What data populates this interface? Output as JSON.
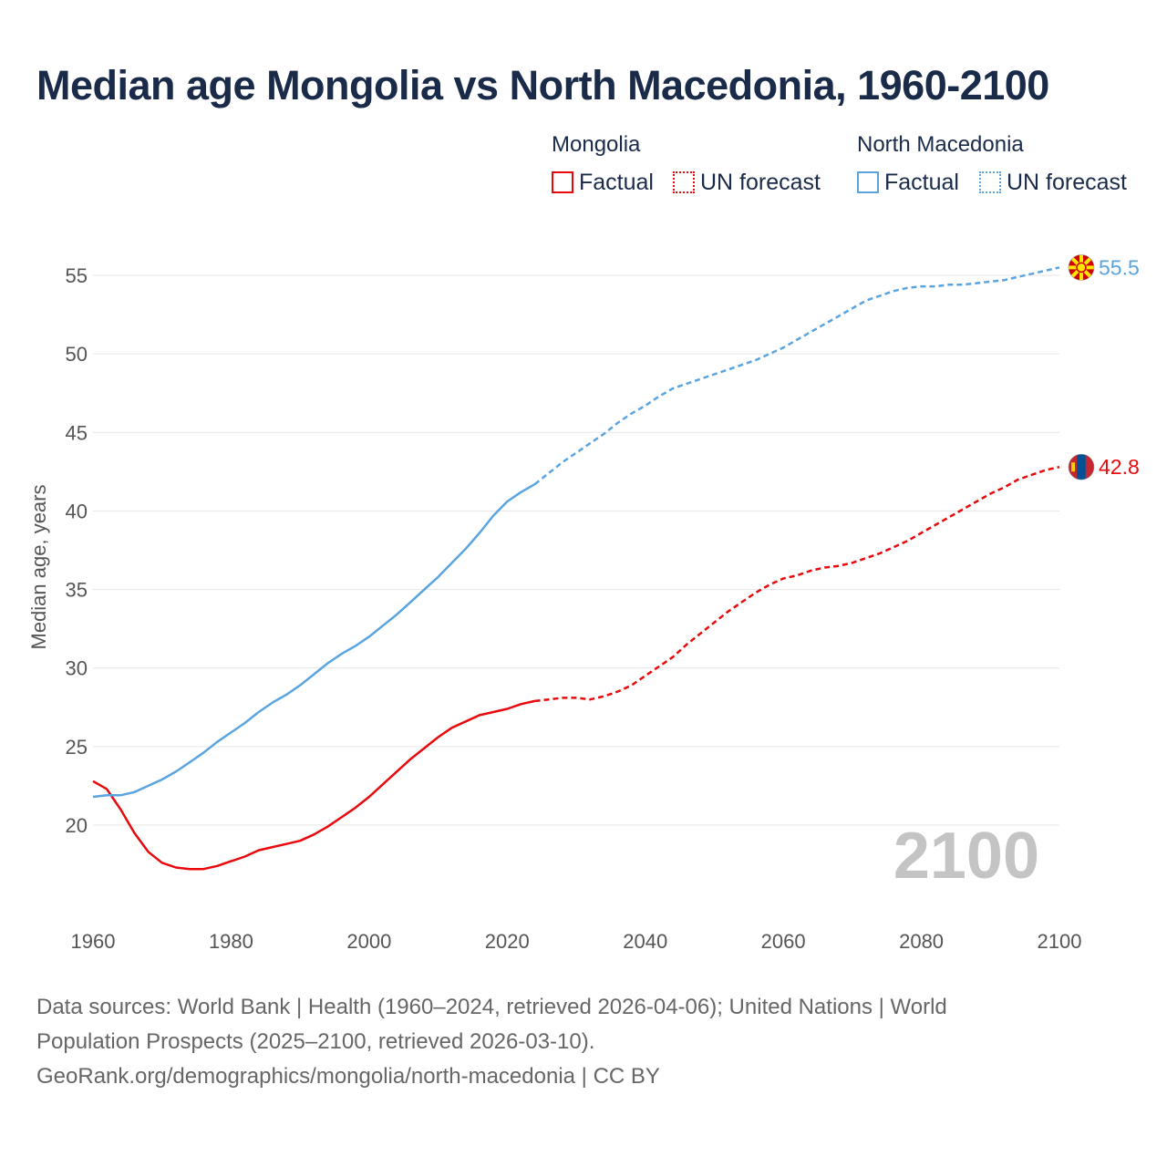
{
  "title": "Median age Mongolia vs North Macedonia, 1960-2100",
  "legend": {
    "groups": [
      {
        "name": "Mongolia",
        "factual_label": "Factual",
        "forecast_label": "UN forecast",
        "color": "#e8090d"
      },
      {
        "name": "North Macedonia",
        "factual_label": "Factual",
        "forecast_label": "UN forecast",
        "color": "#5aa4e0"
      }
    ]
  },
  "year_watermark": "2100",
  "footer": {
    "line1": "Data sources: World Bank | Health (1960–2024, retrieved 2026-04-06); United Nations | World",
    "line2": "Population Prospects (2025–2100, retrieved 2026-03-10).",
    "line3": "GeoRank.org/demographics/mongolia/north-macedonia | CC BY"
  },
  "chart_data": {
    "type": "line",
    "ylabel": "Median age, years",
    "xlabel": "",
    "xlim": [
      1960,
      2100
    ],
    "ylim": [
      16,
      58
    ],
    "x_ticks": [
      1960,
      1980,
      2000,
      2020,
      2040,
      2060,
      2080,
      2100
    ],
    "y_ticks": [
      20,
      25,
      30,
      35,
      40,
      45,
      50,
      55
    ],
    "factual_end_year": 2024,
    "series": [
      {
        "name": "Mongolia",
        "color": "#e8090d",
        "end_label": "42.8",
        "flag_icon": "mongolia-flag-icon",
        "points": [
          [
            1960,
            22.8
          ],
          [
            1962,
            22.3
          ],
          [
            1964,
            21.0
          ],
          [
            1966,
            19.5
          ],
          [
            1968,
            18.3
          ],
          [
            1970,
            17.6
          ],
          [
            1972,
            17.3
          ],
          [
            1974,
            17.2
          ],
          [
            1976,
            17.2
          ],
          [
            1978,
            17.4
          ],
          [
            1980,
            17.7
          ],
          [
            1982,
            18.0
          ],
          [
            1984,
            18.4
          ],
          [
            1986,
            18.6
          ],
          [
            1988,
            18.8
          ],
          [
            1990,
            19.0
          ],
          [
            1992,
            19.4
          ],
          [
            1994,
            19.9
          ],
          [
            1996,
            20.5
          ],
          [
            1998,
            21.1
          ],
          [
            2000,
            21.8
          ],
          [
            2002,
            22.6
          ],
          [
            2004,
            23.4
          ],
          [
            2006,
            24.2
          ],
          [
            2008,
            24.9
          ],
          [
            2010,
            25.6
          ],
          [
            2012,
            26.2
          ],
          [
            2014,
            26.6
          ],
          [
            2016,
            27.0
          ],
          [
            2018,
            27.2
          ],
          [
            2020,
            27.4
          ],
          [
            2022,
            27.7
          ],
          [
            2024,
            27.9
          ],
          [
            2026,
            28.0
          ],
          [
            2028,
            28.1
          ],
          [
            2030,
            28.1
          ],
          [
            2032,
            28.0
          ],
          [
            2034,
            28.2
          ],
          [
            2036,
            28.5
          ],
          [
            2038,
            28.9
          ],
          [
            2040,
            29.5
          ],
          [
            2042,
            30.1
          ],
          [
            2044,
            30.7
          ],
          [
            2046,
            31.5
          ],
          [
            2048,
            32.2
          ],
          [
            2050,
            32.9
          ],
          [
            2052,
            33.6
          ],
          [
            2054,
            34.2
          ],
          [
            2056,
            34.8
          ],
          [
            2058,
            35.3
          ],
          [
            2060,
            35.7
          ],
          [
            2062,
            35.9
          ],
          [
            2064,
            36.2
          ],
          [
            2066,
            36.4
          ],
          [
            2068,
            36.5
          ],
          [
            2070,
            36.7
          ],
          [
            2072,
            37.0
          ],
          [
            2074,
            37.3
          ],
          [
            2076,
            37.7
          ],
          [
            2078,
            38.1
          ],
          [
            2080,
            38.6
          ],
          [
            2082,
            39.1
          ],
          [
            2084,
            39.6
          ],
          [
            2086,
            40.1
          ],
          [
            2088,
            40.6
          ],
          [
            2090,
            41.1
          ],
          [
            2092,
            41.5
          ],
          [
            2094,
            42.0
          ],
          [
            2096,
            42.3
          ],
          [
            2098,
            42.6
          ],
          [
            2100,
            42.8
          ]
        ]
      },
      {
        "name": "North Macedonia",
        "color": "#5aa4e0",
        "end_label": "55.5",
        "flag_icon": "north-macedonia-flag-icon",
        "points": [
          [
            1960,
            21.8
          ],
          [
            1962,
            21.9
          ],
          [
            1964,
            21.9
          ],
          [
            1966,
            22.1
          ],
          [
            1968,
            22.5
          ],
          [
            1970,
            22.9
          ],
          [
            1972,
            23.4
          ],
          [
            1974,
            24.0
          ],
          [
            1976,
            24.6
          ],
          [
            1978,
            25.3
          ],
          [
            1980,
            25.9
          ],
          [
            1982,
            26.5
          ],
          [
            1984,
            27.2
          ],
          [
            1986,
            27.8
          ],
          [
            1988,
            28.3
          ],
          [
            1990,
            28.9
          ],
          [
            1992,
            29.6
          ],
          [
            1994,
            30.3
          ],
          [
            1996,
            30.9
          ],
          [
            1998,
            31.4
          ],
          [
            2000,
            32.0
          ],
          [
            2002,
            32.7
          ],
          [
            2004,
            33.4
          ],
          [
            2006,
            34.2
          ],
          [
            2008,
            35.0
          ],
          [
            2010,
            35.8
          ],
          [
            2012,
            36.7
          ],
          [
            2014,
            37.6
          ],
          [
            2016,
            38.6
          ],
          [
            2018,
            39.7
          ],
          [
            2020,
            40.6
          ],
          [
            2022,
            41.2
          ],
          [
            2024,
            41.7
          ],
          [
            2026,
            42.4
          ],
          [
            2028,
            43.1
          ],
          [
            2030,
            43.7
          ],
          [
            2032,
            44.3
          ],
          [
            2034,
            44.9
          ],
          [
            2036,
            45.6
          ],
          [
            2038,
            46.2
          ],
          [
            2040,
            46.7
          ],
          [
            2042,
            47.3
          ],
          [
            2044,
            47.8
          ],
          [
            2046,
            48.1
          ],
          [
            2048,
            48.4
          ],
          [
            2050,
            48.7
          ],
          [
            2052,
            49.0
          ],
          [
            2054,
            49.3
          ],
          [
            2056,
            49.6
          ],
          [
            2058,
            50.0
          ],
          [
            2060,
            50.4
          ],
          [
            2062,
            50.9
          ],
          [
            2064,
            51.4
          ],
          [
            2066,
            51.9
          ],
          [
            2068,
            52.4
          ],
          [
            2070,
            52.9
          ],
          [
            2072,
            53.4
          ],
          [
            2074,
            53.7
          ],
          [
            2076,
            54.0
          ],
          [
            2078,
            54.2
          ],
          [
            2080,
            54.3
          ],
          [
            2082,
            54.3
          ],
          [
            2084,
            54.4
          ],
          [
            2086,
            54.4
          ],
          [
            2088,
            54.5
          ],
          [
            2090,
            54.6
          ],
          [
            2092,
            54.7
          ],
          [
            2094,
            54.9
          ],
          [
            2096,
            55.1
          ],
          [
            2098,
            55.3
          ],
          [
            2100,
            55.5
          ]
        ]
      }
    ]
  }
}
